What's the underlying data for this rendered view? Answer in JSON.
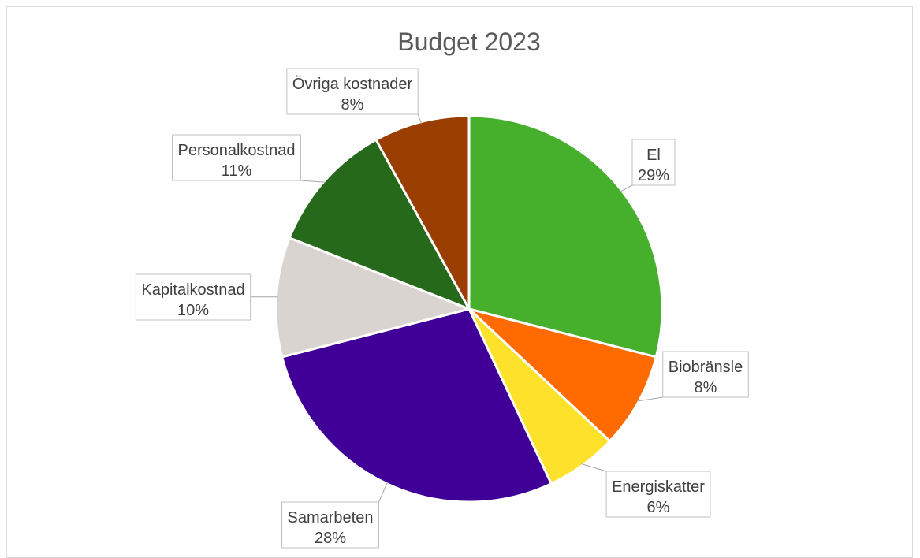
{
  "chart_data": {
    "type": "pie",
    "title": "Budget 2023",
    "legend": "none",
    "slices": [
      {
        "name": "El",
        "value": 29,
        "label": "29%",
        "color": "#46B02D"
      },
      {
        "name": "Biobränsle",
        "value": 8,
        "label": "8%",
        "color": "#FF6B00"
      },
      {
        "name": "Energiskatter",
        "value": 6,
        "label": "6%",
        "color": "#FDE12B"
      },
      {
        "name": "Samarbeten",
        "value": 28,
        "label": "28%",
        "color": "#400098"
      },
      {
        "name": "Kapitalkostnad",
        "value": 10,
        "label": "10%",
        "color": "#D9D4CF"
      },
      {
        "name": "Personalkostnad",
        "value": 11,
        "label": "11%",
        "color": "#27691B"
      },
      {
        "name": "Övriga kostnader",
        "value": 8,
        "label": "8%",
        "color": "#9A3D00"
      }
    ]
  }
}
